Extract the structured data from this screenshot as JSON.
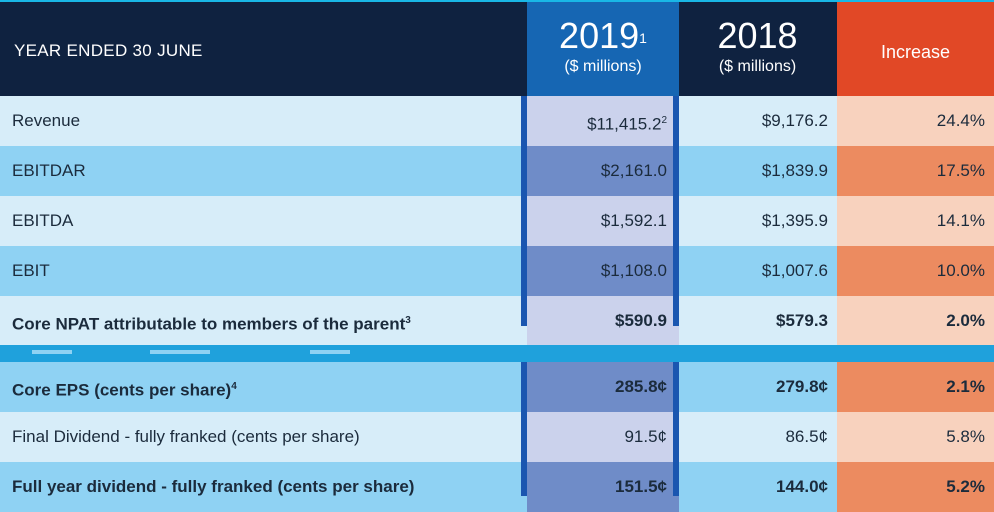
{
  "header": {
    "row_label": "YEAR ENDED 30 JUNE",
    "col_2019_year": "2019",
    "col_2019_note": "1",
    "col_2019_unit": "($ millions)",
    "col_2018_year": "2018",
    "col_2018_unit": "($ millions)",
    "col_increase": "Increase"
  },
  "rows": [
    {
      "label": "Revenue",
      "label_note": "",
      "v2019": "$11,415.2",
      "v2019_note": "2",
      "v2018": "$9,176.2",
      "inc": "24.4%",
      "bold": false
    },
    {
      "label": "EBITDAR",
      "label_note": "",
      "v2019": "$2,161.0",
      "v2019_note": "",
      "v2018": "$1,839.9",
      "inc": "17.5%",
      "bold": false
    },
    {
      "label": "EBITDA",
      "label_note": "",
      "v2019": "$1,592.1",
      "v2019_note": "",
      "v2018": "$1,395.9",
      "inc": "14.1%",
      "bold": false
    },
    {
      "label": "EBIT",
      "label_note": "",
      "v2019": "$1,108.0",
      "v2019_note": "",
      "v2018": "$1,007.6",
      "inc": "10.0%",
      "bold": false
    },
    {
      "label": "Core NPAT attributable to members of the parent",
      "label_note": "3",
      "v2019": "$590.9",
      "v2019_note": "",
      "v2018": "$579.3",
      "inc": "2.0%",
      "bold": true
    },
    {
      "label": "Core EPS (cents per share)",
      "label_note": "4",
      "v2019": "285.8¢",
      "v2019_note": "",
      "v2018": "279.8¢",
      "inc": "2.1%",
      "bold": true
    },
    {
      "label": "Final Dividend - fully franked (cents per share)",
      "label_note": "",
      "v2019": "91.5¢",
      "v2019_note": "",
      "v2018": "86.5¢",
      "inc": "5.8%",
      "bold": false
    },
    {
      "label": "Full year dividend - fully franked (cents per share)",
      "label_note": "",
      "v2019": "151.5¢",
      "v2019_note": "",
      "v2018": "144.0¢",
      "inc": "5.2%",
      "bold": true
    }
  ],
  "colors": {
    "header_bg": "#0f2240",
    "col_2019_header": "#1666b3",
    "increase_header": "#e14826",
    "row_light": "#d7edf9",
    "row_mid": "#8fd2f3"
  }
}
